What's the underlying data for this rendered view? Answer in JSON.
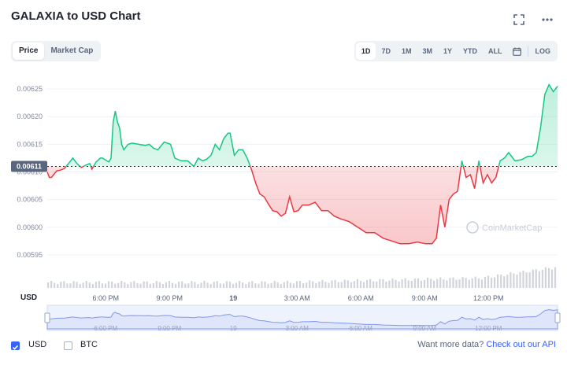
{
  "title": "GALAXIA to USD Chart",
  "header_icons": [
    "fullscreen-icon",
    "more-icon"
  ],
  "tabs": [
    {
      "label": "Price",
      "active": true
    },
    {
      "label": "Market Cap",
      "active": false
    }
  ],
  "ranges": [
    {
      "label": "1D",
      "active": true
    },
    {
      "label": "7D",
      "active": false
    },
    {
      "label": "1M",
      "active": false
    },
    {
      "label": "3M",
      "active": false
    },
    {
      "label": "1Y",
      "active": false
    },
    {
      "label": "YTD",
      "active": false
    },
    {
      "label": "ALL",
      "active": false
    }
  ],
  "log_label": "LOG",
  "watermark": "CoinMarketCap",
  "currency_axis_label": "USD",
  "legend": {
    "usd": {
      "label": "USD",
      "checked": true
    },
    "btc": {
      "label": "BTC",
      "checked": false
    }
  },
  "api_prompt": "Want more data?",
  "api_link": "Check out our API",
  "colors": {
    "up": "#16c784",
    "down": "#ea3943",
    "accent": "#3861fb",
    "reference": "#222531"
  },
  "chart_data": {
    "type": "line",
    "reference_price": 0.00611,
    "reference_label": "0.00611",
    "ylim": [
      0.00591,
      0.00628
    ],
    "y_ticks": [
      "0.00625",
      "0.00620",
      "0.00615",
      "0.00610",
      "0.00605",
      "0.00600",
      "0.00595"
    ],
    "x_ticks": [
      "6:00 PM",
      "9:00 PM",
      "19",
      "3:00 AM",
      "6:00 AM",
      "9:00 AM",
      "12:00 PM"
    ],
    "x_range_hours": [
      0,
      24
    ],
    "x_tick_hours": [
      2.75,
      5.75,
      8.75,
      11.75,
      14.75,
      17.75,
      20.75
    ],
    "series": [
      {
        "x": [
          0,
          0.1,
          0.2,
          0.3,
          0.45,
          0.6,
          0.8,
          1,
          1.2,
          1.4,
          1.6,
          1.8,
          2,
          2.1,
          2.3,
          2.5,
          2.6,
          2.8,
          2.9,
          3,
          3.1,
          3.2,
          3.3,
          3.4,
          3.5,
          3.6,
          3.8,
          4,
          4.3,
          4.6,
          4.8,
          5,
          5.2,
          5.5,
          5.8,
          6,
          6.3,
          6.6,
          6.9,
          7.1,
          7.3,
          7.5,
          7.7,
          7.9,
          8.1,
          8.3,
          8.5,
          8.6,
          8.8,
          9,
          9.2,
          9.4,
          9.6,
          9.8,
          10,
          10.2,
          10.4,
          10.6,
          10.8,
          11,
          11.2,
          11.4,
          11.6,
          11.8,
          12,
          12.3,
          12.6,
          12.9,
          13.2,
          13.5,
          13.8,
          14.2,
          14.6,
          15,
          15.4,
          15.8,
          16.2,
          16.6,
          17,
          17.4,
          17.8,
          18.1,
          18.3,
          18.5,
          18.7,
          18.9,
          19.1,
          19.3,
          19.5,
          19.7,
          19.9,
          20.1,
          20.3,
          20.5,
          20.7,
          20.9,
          21.1,
          21.3,
          21.5,
          21.7,
          22,
          22.3,
          22.6,
          22.8,
          23,
          23.2,
          23.4,
          23.6,
          23.8,
          24
        ],
        "values": [
          0.0061,
          0.00609,
          0.00609,
          0.006095,
          0.006102,
          0.006103,
          0.006106,
          0.006115,
          0.006125,
          0.006115,
          0.006108,
          0.006112,
          0.006115,
          0.006105,
          0.006118,
          0.006125,
          0.006125,
          0.00612,
          0.006118,
          0.006125,
          0.00619,
          0.00621,
          0.00619,
          0.00618,
          0.00615,
          0.00614,
          0.00615,
          0.006152,
          0.00615,
          0.006148,
          0.00615,
          0.006143,
          0.00614,
          0.006154,
          0.00615,
          0.006125,
          0.00612,
          0.00612,
          0.00611,
          0.006125,
          0.00612,
          0.006123,
          0.00613,
          0.00615,
          0.00614,
          0.00616,
          0.00617,
          0.00617,
          0.00613,
          0.00614,
          0.00614,
          0.006125,
          0.006105,
          0.00608,
          0.00606,
          0.006055,
          0.006042,
          0.00603,
          0.006028,
          0.00602,
          0.006025,
          0.006055,
          0.006028,
          0.00603,
          0.00604,
          0.00604,
          0.006045,
          0.00603,
          0.00603,
          0.00602,
          0.006015,
          0.00601,
          0.006,
          0.00599,
          0.00599,
          0.00598,
          0.005975,
          0.00597,
          0.00597,
          0.005973,
          0.00597,
          0.00597,
          0.00598,
          0.00604,
          0.006,
          0.00605,
          0.00606,
          0.006065,
          0.00612,
          0.00609,
          0.006095,
          0.00607,
          0.00612,
          0.00608,
          0.006095,
          0.00608,
          0.00609,
          0.00612,
          0.006125,
          0.006135,
          0.00612,
          0.006122,
          0.006128,
          0.006128,
          0.006135,
          0.00618,
          0.00624,
          0.006258,
          0.006245,
          0.006255
        ]
      }
    ],
    "volume_area": true,
    "navigator": true
  }
}
